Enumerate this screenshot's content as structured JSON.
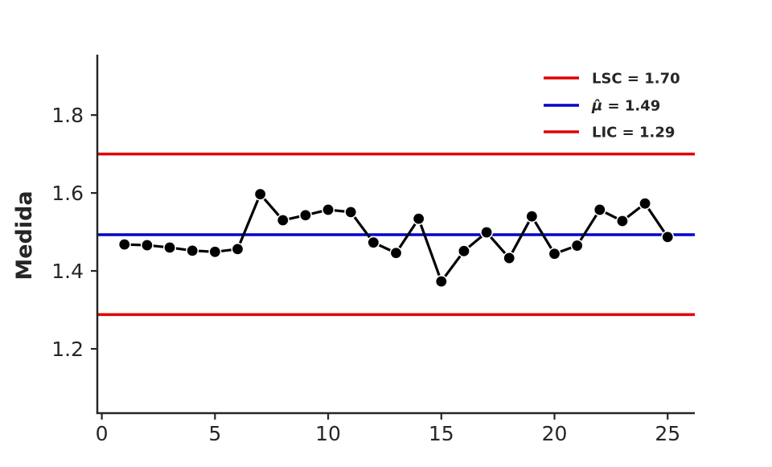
{
  "chart_data": {
    "type": "line",
    "title": "",
    "xlabel": "",
    "ylabel": "Medida",
    "xlim": [
      -0.2,
      26.2
    ],
    "ylim": [
      1.035,
      1.955
    ],
    "xticks": [
      0,
      5,
      10,
      15,
      20,
      25
    ],
    "xtick_labels": [
      "0",
      "5",
      "10",
      "15",
      "20",
      "25"
    ],
    "yticks": [
      1.2,
      1.4,
      1.6,
      1.8
    ],
    "ytick_labels": [
      "1.2",
      "1.4",
      "1.6",
      "1.8"
    ],
    "grid": false,
    "legend_position": "top-right",
    "x": [
      1,
      2,
      3,
      4,
      5,
      6,
      7,
      8,
      9,
      10,
      11,
      12,
      13,
      14,
      15,
      16,
      17,
      18,
      19,
      20,
      21,
      22,
      23,
      24,
      25
    ],
    "series": [
      {
        "values": [
          1.468,
          1.466,
          1.46,
          1.452,
          1.449,
          1.456,
          1.597,
          1.53,
          1.543,
          1.557,
          1.551,
          1.473,
          1.446,
          1.534,
          1.373,
          1.451,
          1.499,
          1.433,
          1.54,
          1.444,
          1.465,
          1.557,
          1.528,
          1.573,
          1.487
        ],
        "color": "#000000",
        "marker": "circle"
      }
    ],
    "reference_lines": [
      {
        "label": "LSC = 1.70",
        "value": 1.7,
        "color": "#e00000"
      },
      {
        "label_symbol": "μ̂",
        "label_rest": " = 1.49",
        "value": 1.493,
        "color": "#0000cc"
      },
      {
        "label": "LIC = 1.29",
        "value": 1.288,
        "color": "#e00000"
      }
    ]
  }
}
